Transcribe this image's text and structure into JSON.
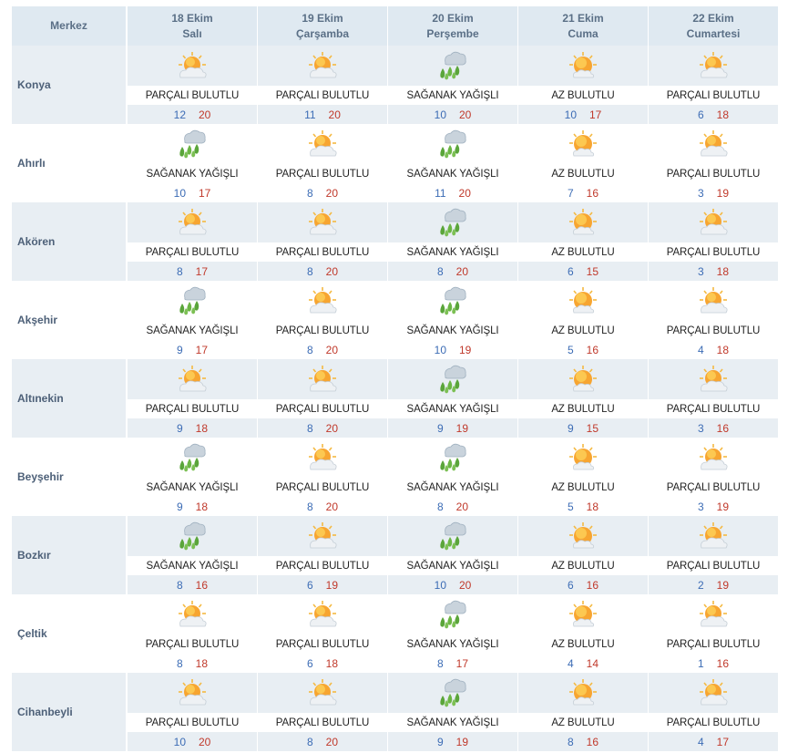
{
  "header": {
    "center_label": "Merkez",
    "days": [
      {
        "date": "18 Ekim",
        "weekday": "Salı"
      },
      {
        "date": "19 Ekim",
        "weekday": "Çarşamba"
      },
      {
        "date": "20 Ekim",
        "weekday": "Perşembe"
      },
      {
        "date": "21 Ekim",
        "weekday": "Cuma"
      },
      {
        "date": "22 Ekim",
        "weekday": "Cumartesi"
      }
    ]
  },
  "conditions": {
    "partly_cloudy": {
      "label": "PARÇALI BULUTLU",
      "icon": "partly-cloudy-icon"
    },
    "showers": {
      "label": "SAĞANAK YAĞIŞLI",
      "icon": "showers-icon"
    },
    "few_clouds": {
      "label": "AZ BULUTLU",
      "icon": "few-clouds-icon"
    }
  },
  "colors": {
    "header_bg": "#dfe9f1",
    "row_shade": "#e8eef3",
    "low_temp": "#3c6cb5",
    "high_temp": "#c0392b",
    "city_text": "#4d6078"
  },
  "rows": [
    {
      "city": "Konya",
      "days": [
        {
          "cond": "partly_cloudy",
          "label": "PARÇALI BULUTLU",
          "low": "12",
          "high": "20"
        },
        {
          "cond": "partly_cloudy",
          "label": "PARÇALI BULUTLU",
          "low": "11",
          "high": "20"
        },
        {
          "cond": "showers",
          "label": "SAĞANAK YAĞIŞLI",
          "low": "10",
          "high": "20"
        },
        {
          "cond": "few_clouds",
          "label": "AZ BULUTLU",
          "low": "10",
          "high": "17"
        },
        {
          "cond": "partly_cloudy",
          "label": "PARÇALI BULUTLU",
          "low": "6",
          "high": "18"
        }
      ]
    },
    {
      "city": "Ahırlı",
      "days": [
        {
          "cond": "showers",
          "label": "SAĞANAK YAĞIŞLI",
          "low": "10",
          "high": "17"
        },
        {
          "cond": "partly_cloudy",
          "label": "PARÇALI BULUTLU",
          "low": "8",
          "high": "20"
        },
        {
          "cond": "showers",
          "label": "SAĞANAK YAĞIŞLI",
          "low": "11",
          "high": "20"
        },
        {
          "cond": "few_clouds",
          "label": "AZ BULUTLU",
          "low": "7",
          "high": "16"
        },
        {
          "cond": "partly_cloudy",
          "label": "PARÇALI BULUTLU",
          "low": "3",
          "high": "19"
        }
      ]
    },
    {
      "city": "Akören",
      "days": [
        {
          "cond": "partly_cloudy",
          "label": "PARÇALI BULUTLU",
          "low": "8",
          "high": "17"
        },
        {
          "cond": "partly_cloudy",
          "label": "PARÇALI BULUTLU",
          "low": "8",
          "high": "20"
        },
        {
          "cond": "showers",
          "label": "SAĞANAK YAĞIŞLI",
          "low": "8",
          "high": "20"
        },
        {
          "cond": "few_clouds",
          "label": "AZ BULUTLU",
          "low": "6",
          "high": "15"
        },
        {
          "cond": "partly_cloudy",
          "label": "PARÇALI BULUTLU",
          "low": "3",
          "high": "18"
        }
      ]
    },
    {
      "city": "Akşehir",
      "days": [
        {
          "cond": "showers",
          "label": "SAĞANAK YAĞIŞLI",
          "low": "9",
          "high": "17"
        },
        {
          "cond": "partly_cloudy",
          "label": "PARÇALI BULUTLU",
          "low": "8",
          "high": "20"
        },
        {
          "cond": "showers",
          "label": "SAĞANAK YAĞIŞLI",
          "low": "10",
          "high": "19"
        },
        {
          "cond": "few_clouds",
          "label": "AZ BULUTLU",
          "low": "5",
          "high": "16"
        },
        {
          "cond": "partly_cloudy",
          "label": "PARÇALI BULUTLU",
          "low": "4",
          "high": "18"
        }
      ]
    },
    {
      "city": "Altınekin",
      "days": [
        {
          "cond": "partly_cloudy",
          "label": "PARÇALI BULUTLU",
          "low": "9",
          "high": "18"
        },
        {
          "cond": "partly_cloudy",
          "label": "PARÇALI BULUTLU",
          "low": "8",
          "high": "20"
        },
        {
          "cond": "showers",
          "label": "SAĞANAK YAĞIŞLI",
          "low": "9",
          "high": "19"
        },
        {
          "cond": "few_clouds",
          "label": "AZ BULUTLU",
          "low": "9",
          "high": "15"
        },
        {
          "cond": "partly_cloudy",
          "label": "PARÇALI BULUTLU",
          "low": "3",
          "high": "16"
        }
      ]
    },
    {
      "city": "Beyşehir",
      "days": [
        {
          "cond": "showers",
          "label": "SAĞANAK YAĞIŞLI",
          "low": "9",
          "high": "18"
        },
        {
          "cond": "partly_cloudy",
          "label": "PARÇALI BULUTLU",
          "low": "8",
          "high": "20"
        },
        {
          "cond": "showers",
          "label": "SAĞANAK YAĞIŞLI",
          "low": "8",
          "high": "20"
        },
        {
          "cond": "few_clouds",
          "label": "AZ BULUTLU",
          "low": "5",
          "high": "18"
        },
        {
          "cond": "partly_cloudy",
          "label": "PARÇALI BULUTLU",
          "low": "3",
          "high": "19"
        }
      ]
    },
    {
      "city": "Bozkır",
      "days": [
        {
          "cond": "showers",
          "label": "SAĞANAK YAĞIŞLI",
          "low": "8",
          "high": "16"
        },
        {
          "cond": "partly_cloudy",
          "label": "PARÇALI BULUTLU",
          "low": "6",
          "high": "19"
        },
        {
          "cond": "showers",
          "label": "SAĞANAK YAĞIŞLI",
          "low": "10",
          "high": "20"
        },
        {
          "cond": "few_clouds",
          "label": "AZ BULUTLU",
          "low": "6",
          "high": "16"
        },
        {
          "cond": "partly_cloudy",
          "label": "PARÇALI BULUTLU",
          "low": "2",
          "high": "19"
        }
      ]
    },
    {
      "city": "Çeltik",
      "days": [
        {
          "cond": "partly_cloudy",
          "label": "PARÇALI BULUTLU",
          "low": "8",
          "high": "18"
        },
        {
          "cond": "partly_cloudy",
          "label": "PARÇALI BULUTLU",
          "low": "6",
          "high": "18"
        },
        {
          "cond": "showers",
          "label": "SAĞANAK YAĞIŞLI",
          "low": "8",
          "high": "17"
        },
        {
          "cond": "few_clouds",
          "label": "AZ BULUTLU",
          "low": "4",
          "high": "14"
        },
        {
          "cond": "partly_cloudy",
          "label": "PARÇALI BULUTLU",
          "low": "1",
          "high": "16"
        }
      ]
    },
    {
      "city": "Cihanbeyli",
      "days": [
        {
          "cond": "partly_cloudy",
          "label": "PARÇALI BULUTLU",
          "low": "10",
          "high": "20"
        },
        {
          "cond": "partly_cloudy",
          "label": "PARÇALI BULUTLU",
          "low": "8",
          "high": "20"
        },
        {
          "cond": "showers",
          "label": "SAĞANAK YAĞIŞLI",
          "low": "9",
          "high": "19"
        },
        {
          "cond": "few_clouds",
          "label": "AZ BULUTLU",
          "low": "8",
          "high": "16"
        },
        {
          "cond": "partly_cloudy",
          "label": "PARÇALI BULUTLU",
          "low": "4",
          "high": "17"
        }
      ]
    }
  ]
}
